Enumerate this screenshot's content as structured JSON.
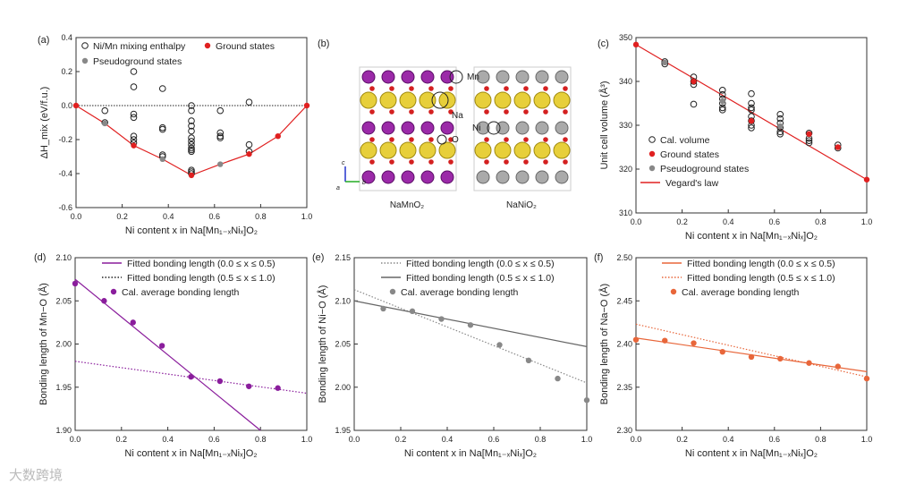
{
  "colors": {
    "red": "#e02020",
    "gray": "#888888",
    "purple": "#8a1d9c",
    "orange": "#e8663a",
    "darkgray": "#555555"
  },
  "watermark": "大数跨境",
  "structure": {
    "label": "(b)",
    "left_title": "NaMnO₂",
    "right_title": "NaNiO₂",
    "atoms": {
      "mn": "Mn",
      "na": "Na",
      "o": "O",
      "ni": "Ni"
    },
    "axes": {
      "c": "c",
      "a": "a",
      "b": "b"
    }
  },
  "chart_data": [
    {
      "id": "a",
      "type": "scatter",
      "panel_label": "(a)",
      "xlabel": "Ni content x in Na[Mn₁₋ₓNiₓ]O₂",
      "ylabel": "ΔH_mix (eV/f.u.)",
      "xlim": [
        0,
        1
      ],
      "ylim": [
        -0.6,
        0.4
      ],
      "xticks": [
        "0.0",
        "0.2",
        "0.4",
        "0.6",
        "0.8",
        "1.0"
      ],
      "yticks": [
        "-0.6",
        "-0.4",
        "-0.2",
        "0.0",
        "0.2",
        "0.4"
      ],
      "ytick_values": [
        -0.6,
        -0.4,
        -0.2,
        0,
        0.2,
        0.4
      ],
      "reference_line": 0,
      "series": [
        {
          "name": "Ni/Mn mixing enthalpy",
          "style": "open",
          "color": "#222222",
          "points": [
            [
              0.125,
              -0.03
            ],
            [
              0.125,
              -0.1
            ],
            [
              0.25,
              0.2
            ],
            [
              0.25,
              0.11
            ],
            [
              0.25,
              -0.05
            ],
            [
              0.25,
              -0.07
            ],
            [
              0.25,
              -0.18
            ],
            [
              0.25,
              -0.2
            ],
            [
              0.25,
              -0.22
            ],
            [
              0.375,
              0.1
            ],
            [
              0.375,
              -0.13
            ],
            [
              0.375,
              -0.14
            ],
            [
              0.375,
              -0.29
            ],
            [
              0.375,
              -0.3
            ],
            [
              0.5,
              0.0
            ],
            [
              0.5,
              -0.03
            ],
            [
              0.5,
              -0.09
            ],
            [
              0.5,
              -0.12
            ],
            [
              0.5,
              -0.15
            ],
            [
              0.5,
              -0.19
            ],
            [
              0.5,
              -0.21
            ],
            [
              0.5,
              -0.23
            ],
            [
              0.5,
              -0.25
            ],
            [
              0.5,
              -0.26
            ],
            [
              0.5,
              -0.27
            ],
            [
              0.5,
              -0.38
            ],
            [
              0.5,
              -0.39
            ],
            [
              0.5,
              -0.4
            ],
            [
              0.625,
              -0.03
            ],
            [
              0.625,
              -0.16
            ],
            [
              0.625,
              -0.18
            ],
            [
              0.625,
              -0.19
            ],
            [
              0.75,
              0.02
            ],
            [
              0.75,
              -0.23
            ],
            [
              0.75,
              -0.27
            ]
          ]
        },
        {
          "name": "Ground states",
          "style": "filled",
          "color": "#e02020",
          "points": [
            [
              0,
              0
            ],
            [
              0.25,
              -0.235
            ],
            [
              0.5,
              -0.41
            ],
            [
              0.75,
              -0.285
            ],
            [
              0.875,
              -0.18
            ],
            [
              1,
              0
            ]
          ]
        },
        {
          "name": "Pseudoground states",
          "style": "filled",
          "color": "#888888",
          "points": [
            [
              0.125,
              -0.105
            ],
            [
              0.375,
              -0.315
            ],
            [
              0.625,
              -0.345
            ]
          ]
        },
        {
          "name": "Convex hull",
          "style": "line",
          "color": "#e02020",
          "legend": false,
          "points": [
            [
              0,
              0
            ],
            [
              0.125,
              -0.105
            ],
            [
              0.25,
              -0.235
            ],
            [
              0.375,
              -0.315
            ],
            [
              0.5,
              -0.41
            ],
            [
              0.625,
              -0.345
            ],
            [
              0.75,
              -0.285
            ],
            [
              0.875,
              -0.18
            ],
            [
              1,
              0
            ]
          ]
        }
      ]
    },
    {
      "id": "c",
      "type": "scatter",
      "panel_label": "(c)",
      "xlabel": "Ni content x in Na[Mn₁₋ₓNiₓ]O₂",
      "ylabel": "Unit cell volume (Å³)",
      "xlim": [
        0,
        1
      ],
      "ylim": [
        310,
        350
      ],
      "xticks": [
        "0.0",
        "0.2",
        "0.4",
        "0.6",
        "0.8",
        "1.0"
      ],
      "yticks": [
        "310",
        "320",
        "330",
        "340",
        "350"
      ],
      "ytick_values": [
        310,
        320,
        330,
        340,
        350
      ],
      "series": [
        {
          "name": "Cal. volume",
          "style": "open",
          "color": "#222222",
          "points": [
            [
              0.125,
              344
            ],
            [
              0.125,
              344.5
            ],
            [
              0.25,
              341
            ],
            [
              0.25,
              340
            ],
            [
              0.25,
              339.3
            ],
            [
              0.25,
              334.8
            ],
            [
              0.375,
              338
            ],
            [
              0.375,
              337
            ],
            [
              0.375,
              336
            ],
            [
              0.375,
              335
            ],
            [
              0.375,
              334
            ],
            [
              0.375,
              333.5
            ],
            [
              0.5,
              337.2
            ],
            [
              0.5,
              335
            ],
            [
              0.5,
              334
            ],
            [
              0.5,
              333.5
            ],
            [
              0.5,
              332
            ],
            [
              0.5,
              331
            ],
            [
              0.5,
              330
            ],
            [
              0.5,
              329.4
            ],
            [
              0.625,
              332.5
            ],
            [
              0.625,
              331.5
            ],
            [
              0.625,
              330.5
            ],
            [
              0.625,
              329.5
            ],
            [
              0.625,
              328.5
            ],
            [
              0.625,
              328
            ],
            [
              0.75,
              328.2
            ],
            [
              0.75,
              327
            ],
            [
              0.75,
              326.5
            ],
            [
              0.75,
              326
            ],
            [
              0.875,
              325.5
            ],
            [
              0.875,
              324.8
            ]
          ]
        },
        {
          "name": "Ground states",
          "style": "filled",
          "color": "#e02020",
          "points": [
            [
              0,
              348.4
            ],
            [
              0.25,
              340
            ],
            [
              0.5,
              331
            ],
            [
              0.75,
              328
            ],
            [
              0.875,
              325
            ],
            [
              1,
              317.6
            ]
          ]
        },
        {
          "name": "Pseudoground states",
          "style": "filled",
          "color": "#888888",
          "points": [
            [
              0.125,
              344.3
            ],
            [
              0.375,
              335.5
            ],
            [
              0.625,
              329.8
            ]
          ]
        },
        {
          "name": "Vegard's law",
          "style": "line",
          "color": "#e02020",
          "points": [
            [
              0,
              348.4
            ],
            [
              1,
              317.6
            ]
          ]
        }
      ]
    },
    {
      "id": "d",
      "type": "scatter",
      "panel_label": "(d)",
      "xlabel": "Ni content x in Na[Mn₁₋ₓNiₓ]O₂",
      "ylabel": "Bonding length of Mn−O (Å)",
      "xlim": [
        0,
        1
      ],
      "ylim": [
        1.9,
        2.1
      ],
      "xticks": [
        "0.0",
        "0.2",
        "0.4",
        "0.6",
        "0.8",
        "1.0"
      ],
      "yticks": [
        "1.90",
        "1.95",
        "2.00",
        "2.05",
        "2.10"
      ],
      "ytick_values": [
        1.9,
        1.95,
        2.0,
        2.05,
        2.1
      ],
      "series": [
        {
          "name": "Fitted bonding length (0.0 ≤ x ≤ 0.5)",
          "style": "line",
          "color": "#8a1d9c",
          "points": [
            [
              0,
              2.075
            ],
            [
              0.8,
              1.9
            ]
          ]
        },
        {
          "name": "Fitted bonding length (0.5 ≤ x ≤ 1.0)",
          "style": "dotted",
          "color": "#8a1d9c",
          "legend_color": "#222222",
          "points": [
            [
              0,
              1.98
            ],
            [
              1,
              1.943
            ]
          ]
        },
        {
          "name": "Cal. average bonding length",
          "style": "filled",
          "color": "#8a1d9c",
          "points": [
            [
              0,
              2.07
            ],
            [
              0.125,
              2.05
            ],
            [
              0.25,
              2.025
            ],
            [
              0.375,
              1.998
            ],
            [
              0.5,
              1.962
            ],
            [
              0.625,
              1.957
            ],
            [
              0.75,
              1.951
            ],
            [
              0.875,
              1.949
            ]
          ]
        }
      ]
    },
    {
      "id": "e",
      "type": "scatter",
      "panel_label": "(e)",
      "xlabel": "Ni content x in Na[Mn₁₋ₓNiₓ]O₂",
      "ylabel": "Bonding length of Ni−O (Å)",
      "xlim": [
        0,
        1
      ],
      "ylim": [
        1.95,
        2.15
      ],
      "xticks": [
        "0.0",
        "0.2",
        "0.4",
        "0.6",
        "0.8",
        "1.0"
      ],
      "yticks": [
        "1.95",
        "2.00",
        "2.05",
        "2.10",
        "2.15"
      ],
      "ytick_values": [
        1.95,
        2.0,
        2.05,
        2.1,
        2.15
      ],
      "series": [
        {
          "name": "Fitted bonding length (0.0 ≤ x ≤ 0.5)",
          "style": "dotted",
          "color": "#888888",
          "points": [
            [
              0,
              2.113
            ],
            [
              1,
              2.005
            ]
          ]
        },
        {
          "name": "Fitted bonding length (0.5 ≤ x ≤ 1.0)",
          "style": "line",
          "color": "#666666",
          "points": [
            [
              0,
              2.1
            ],
            [
              1,
              2.047
            ]
          ]
        },
        {
          "name": "Cal. average bonding length",
          "style": "filled",
          "color": "#888888",
          "points": [
            [
              0.125,
              2.091
            ],
            [
              0.25,
              2.088
            ],
            [
              0.375,
              2.079
            ],
            [
              0.5,
              2.072
            ],
            [
              0.625,
              2.049
            ],
            [
              0.75,
              2.031
            ],
            [
              0.875,
              2.01
            ],
            [
              1,
              1.985
            ]
          ]
        }
      ]
    },
    {
      "id": "f",
      "type": "scatter",
      "panel_label": "(f)",
      "xlabel": "Ni content x in Na[Mn₁₋ₓNiₓ]O₂",
      "ylabel": "Bonding length of Na−O (Å)",
      "xlim": [
        0,
        1
      ],
      "ylim": [
        2.3,
        2.5
      ],
      "xticks": [
        "0.0",
        "0.2",
        "0.4",
        "0.6",
        "0.8",
        "1.0"
      ],
      "yticks": [
        "2.30",
        "2.35",
        "2.40",
        "2.45",
        "2.50"
      ],
      "ytick_values": [
        2.3,
        2.35,
        2.4,
        2.45,
        2.5
      ],
      "series": [
        {
          "name": "Fitted bonding length (0.0 ≤ x ≤ 0.5)",
          "style": "line",
          "color": "#e8663a",
          "points": [
            [
              0,
              2.407
            ],
            [
              1,
              2.368
            ]
          ]
        },
        {
          "name": "Fitted bonding length (0.5 ≤ x ≤ 1.0)",
          "style": "dotted",
          "color": "#e8663a",
          "points": [
            [
              0,
              2.423
            ],
            [
              1,
              2.362
            ]
          ]
        },
        {
          "name": "Cal. average bonding length",
          "style": "filled",
          "color": "#e8663a",
          "points": [
            [
              0,
              2.405
            ],
            [
              0.125,
              2.404
            ],
            [
              0.25,
              2.401
            ],
            [
              0.375,
              2.391
            ],
            [
              0.5,
              2.385
            ],
            [
              0.625,
              2.383
            ],
            [
              0.75,
              2.378
            ],
            [
              0.875,
              2.374
            ],
            [
              1,
              2.36
            ]
          ]
        }
      ]
    }
  ]
}
